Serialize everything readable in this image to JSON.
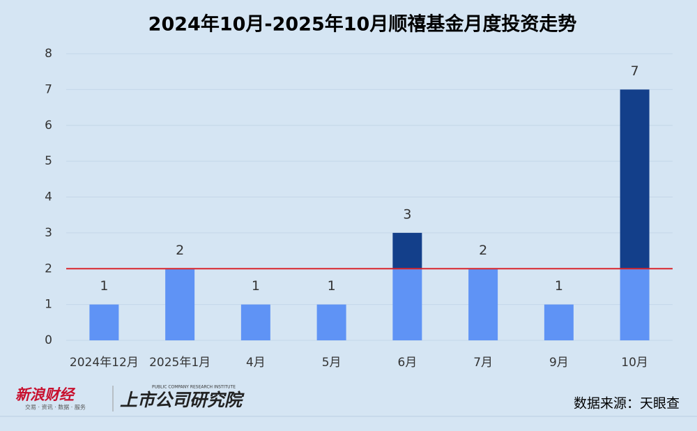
{
  "chart_data": {
    "type": "bar",
    "title": "2024年10月-2025年10月顺禧基金月度投资走势",
    "categories": [
      "2024年12月",
      "2025年1月",
      "4月",
      "5月",
      "6月",
      "7月",
      "9月",
      "10月"
    ],
    "values": [
      1,
      2,
      1,
      1,
      3,
      2,
      1,
      7
    ],
    "color": "#5f93f5",
    "highlight_color": "#133f8a",
    "reference_line": {
      "value": 2,
      "color": "#d9262c"
    },
    "ylim": [
      0,
      8
    ],
    "yticks": [
      0,
      1,
      2,
      3,
      4,
      5,
      6,
      7,
      8
    ],
    "grid": true
  },
  "footer": {
    "brand": "新浪财经",
    "brand_slogan": "交易 · 资讯 · 数据 · 服务",
    "institute": "上市公司研究院",
    "institute_en": "PUBLIC COMPANY RESEARCH INSTITUTE",
    "source": "数据来源：天眼查"
  }
}
